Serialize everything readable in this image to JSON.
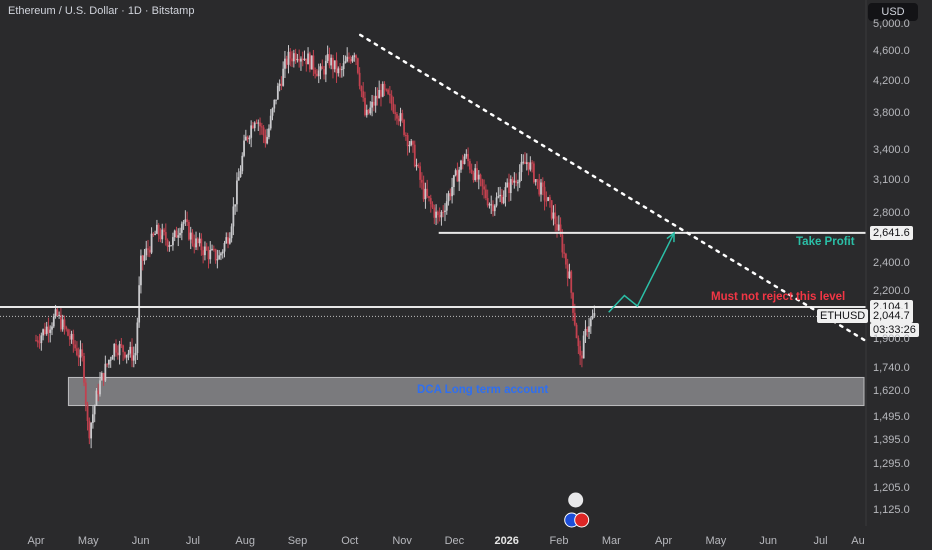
{
  "header": {
    "title": "Ethereum / U.S. Dollar · 1D · Bitstamp",
    "currency_button": "USD"
  },
  "chart_data": {
    "type": "candlestick",
    "title": "Ethereum / U.S. Dollar · 1D · Bitstamp",
    "ylim": [
      1080,
      5100
    ],
    "y_scale": "log",
    "y_ticks": [
      "5,000.0",
      "4,600.0",
      "4,200.0",
      "3,800.0",
      "3,400.0",
      "3,100.0",
      "2,800.0",
      "2,400.0",
      "2,200.0",
      "1,900.0",
      "1,740.0",
      "1,620.0",
      "1,495.0",
      "1,395.0",
      "1,295.0",
      "1,205.0",
      "1,125.0"
    ],
    "x_ticks": [
      "Apr",
      "May",
      "Jun",
      "Jul",
      "Aug",
      "Sep",
      "Oct",
      "Nov",
      "Dec",
      "2026",
      "Feb",
      "Mar",
      "Apr",
      "May",
      "Jun",
      "Jul",
      "Au"
    ],
    "price_path": [
      [
        0,
        1900
      ],
      [
        0.4,
        2050
      ],
      [
        0.9,
        1780
      ],
      [
        1.0,
        1420
      ],
      [
        1.2,
        1650
      ],
      [
        1.5,
        1870
      ],
      [
        1.9,
        1810
      ],
      [
        2.0,
        2400
      ],
      [
        2.3,
        2650
      ],
      [
        2.6,
        2560
      ],
      [
        2.8,
        2750
      ],
      [
        3.0,
        2580
      ],
      [
        3.3,
        2480
      ],
      [
        3.5,
        2450
      ],
      [
        3.7,
        2650
      ],
      [
        3.85,
        3050
      ],
      [
        4.0,
        3500
      ],
      [
        4.2,
        3800
      ],
      [
        4.4,
        3500
      ],
      [
        4.6,
        4050
      ],
      [
        4.8,
        4500
      ],
      [
        5.0,
        4600
      ],
      [
        5.2,
        4500
      ],
      [
        5.45,
        4300
      ],
      [
        5.6,
        4500
      ],
      [
        5.8,
        4300
      ],
      [
        6.1,
        4650
      ],
      [
        6.3,
        3750
      ],
      [
        6.6,
        4100
      ],
      [
        6.9,
        3850
      ],
      [
        7.2,
        3400
      ],
      [
        7.4,
        3000
      ],
      [
        7.7,
        2750
      ],
      [
        7.9,
        2980
      ],
      [
        8.2,
        3350
      ],
      [
        8.5,
        3050
      ],
      [
        8.7,
        2880
      ],
      [
        8.9,
        2960
      ],
      [
        9.1,
        3080
      ],
      [
        9.4,
        3300
      ],
      [
        9.6,
        3060
      ],
      [
        9.8,
        2890
      ],
      [
        10.0,
        2650
      ],
      [
        10.2,
        2300
      ],
      [
        10.4,
        1780
      ],
      [
        10.55,
        2000
      ],
      [
        10.7,
        2044.7
      ]
    ],
    "last_price": 2044.7,
    "symbol": "ETHUSD",
    "countdown": "03:33:26",
    "levels": {
      "take_profit": {
        "value": 2641.6,
        "label": "2,641.6"
      },
      "resistance": {
        "value": 2104.1,
        "label": "2,104.1"
      },
      "last": {
        "value": 2044.7,
        "label": "2,044.7"
      }
    },
    "zone": {
      "low": 1555,
      "high": 1695
    },
    "trendline": {
      "from": [
        6.2,
        4850
      ],
      "to": [
        15.9,
        1890
      ]
    },
    "projection": [
      [
        10.95,
        2070
      ],
      [
        11.25,
        2180
      ],
      [
        11.5,
        2110
      ],
      [
        12.2,
        2640
      ]
    ],
    "colors": {
      "up": "#c9c9cc",
      "down": "#c2414f",
      "projection": "#2bbfa7",
      "trendline": "#ffffff",
      "level": "#e8e8e8"
    }
  },
  "annotations": {
    "take_profit": "Take Profit",
    "resistance": "Must not reject this level",
    "zone": "DCA Long term account"
  },
  "colors": {
    "take_profit_text": "#2bbfa7",
    "resistance_text": "#f23645",
    "zone_text": "#2f6ff0"
  }
}
